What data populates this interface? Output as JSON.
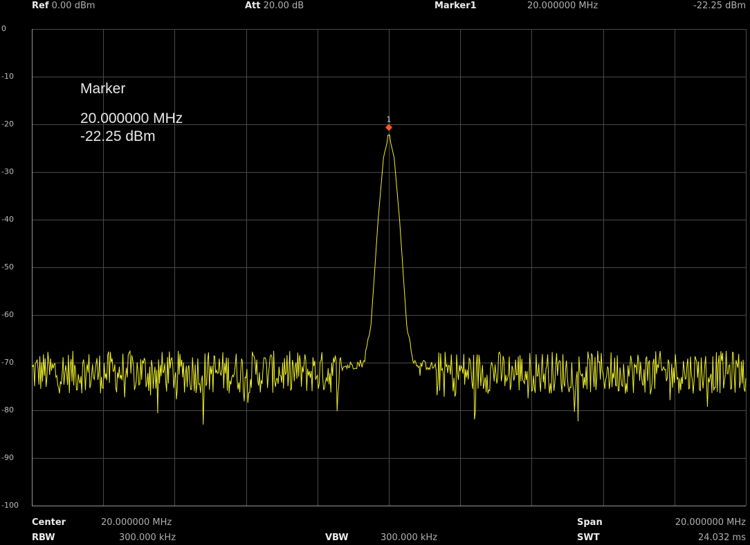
{
  "header": {
    "ref_label": "Ref",
    "ref_value": "0.00 dBm",
    "att_label": "Att",
    "att_value": "20.00 dB",
    "marker_label": "Marker1",
    "marker_freq": "20.000000 MHz",
    "marker_amp": "-22.25 dBm"
  },
  "marker_readout": {
    "title": "Marker",
    "freq": "20.000000 MHz",
    "amp": "-22.25 dBm",
    "marker_number": "1"
  },
  "footer": {
    "center_label": "Center",
    "center_value": "20.000000 MHz",
    "rbw_label": "RBW",
    "rbw_value": "300.000 kHz",
    "vbw_label": "VBW",
    "vbw_value": "300.000 kHz",
    "span_label": "Span",
    "span_value": "20.000000 MHz",
    "swt_label": "SWT",
    "swt_value": "24.032 ms"
  },
  "colors": {
    "background": "#000000",
    "grid": "#4a4a4a",
    "trace": "#f2f22a",
    "marker": "#ff5a1e"
  },
  "chart_data": {
    "type": "line",
    "title": "",
    "xlabel": "",
    "ylabel": "",
    "x_range_mhz": [
      10,
      30
    ],
    "ylim": [
      -100,
      0
    ],
    "y_ticks": [
      "0",
      "-10",
      "-20",
      "-30",
      "-40",
      "-50",
      "-60",
      "-70",
      "-80",
      "-90",
      "-100"
    ],
    "x_divisions": 10,
    "grid": true,
    "noise_floor_dbm": -72,
    "peak": {
      "x_mhz": 20.0,
      "y_dbm": -22.25
    },
    "series": [
      {
        "x": [
          10.0,
          12.0,
          14.0,
          16.0,
          18.0,
          19.3,
          19.5,
          19.7,
          19.85,
          20.0,
          20.15,
          20.3,
          20.5,
          20.7,
          22.0,
          24.0,
          26.0,
          28.0,
          30.0
        ],
        "values": [
          -72,
          -72,
          -72,
          -72,
          -72,
          -70,
          -62,
          -40,
          -27,
          -22.25,
          -27,
          -40,
          -62,
          -70,
          -72,
          -72,
          -72,
          -72,
          -72
        ]
      }
    ]
  }
}
